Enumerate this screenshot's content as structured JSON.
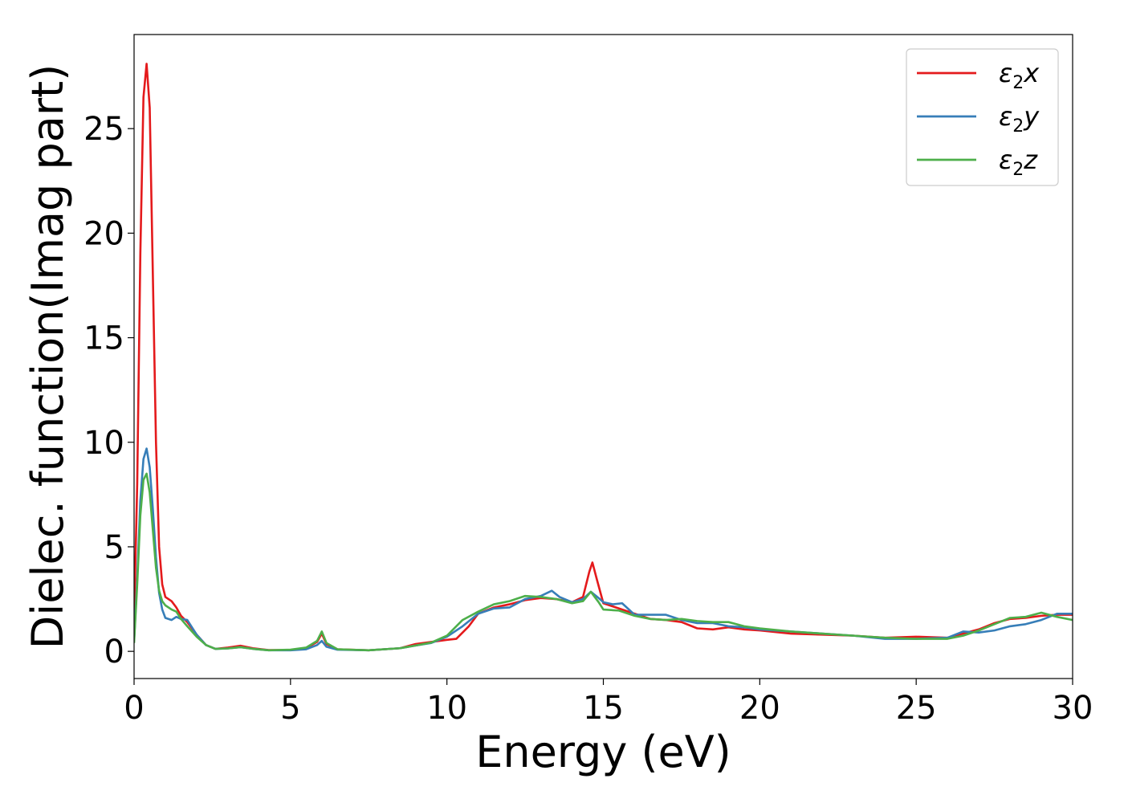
{
  "chart_data": {
    "type": "line",
    "title": "",
    "xlabel": "Energy (eV)",
    "ylabel": "Dielec. function(Imag part)",
    "xlim": [
      0,
      30
    ],
    "ylim": [
      -1.3,
      29.5
    ],
    "xticks": [
      0,
      5,
      10,
      15,
      20,
      25,
      30
    ],
    "yticks": [
      0,
      5,
      10,
      15,
      20,
      25
    ],
    "grid": false,
    "legend_position": "top-right",
    "series": [
      {
        "name": "ε₂x",
        "label_main": "ε",
        "label_sub": "2",
        "label_tail": "x",
        "color": "#e41a1c",
        "points": [
          [
            0,
            1.5
          ],
          [
            0.1,
            8
          ],
          [
            0.2,
            19
          ],
          [
            0.3,
            26.5
          ],
          [
            0.4,
            28.1
          ],
          [
            0.5,
            26
          ],
          [
            0.6,
            18
          ],
          [
            0.7,
            10
          ],
          [
            0.8,
            5
          ],
          [
            0.9,
            3.2
          ],
          [
            1.0,
            2.6
          ],
          [
            1.2,
            2.4
          ],
          [
            1.35,
            2.1
          ],
          [
            1.5,
            1.7
          ],
          [
            1.7,
            1.4
          ],
          [
            2.0,
            0.8
          ],
          [
            2.3,
            0.3
          ],
          [
            2.6,
            0.12
          ],
          [
            3.0,
            0.18
          ],
          [
            3.4,
            0.27
          ],
          [
            3.8,
            0.15
          ],
          [
            4.3,
            0.06
          ],
          [
            5.0,
            0.06
          ],
          [
            5.5,
            0.15
          ],
          [
            5.85,
            0.45
          ],
          [
            6.0,
            0.85
          ],
          [
            6.15,
            0.35
          ],
          [
            6.5,
            0.1
          ],
          [
            7.5,
            0.05
          ],
          [
            8.5,
            0.15
          ],
          [
            9.0,
            0.35
          ],
          [
            9.5,
            0.45
          ],
          [
            10.0,
            0.55
          ],
          [
            10.3,
            0.6
          ],
          [
            10.7,
            1.2
          ],
          [
            11.0,
            1.8
          ],
          [
            11.5,
            2.1
          ],
          [
            12.0,
            2.25
          ],
          [
            12.5,
            2.45
          ],
          [
            13.0,
            2.55
          ],
          [
            13.5,
            2.5
          ],
          [
            14.0,
            2.35
          ],
          [
            14.35,
            2.6
          ],
          [
            14.55,
            3.8
          ],
          [
            14.65,
            4.25
          ],
          [
            14.8,
            3.4
          ],
          [
            15.0,
            2.3
          ],
          [
            15.5,
            2.05
          ],
          [
            16.0,
            1.8
          ],
          [
            16.5,
            1.55
          ],
          [
            17.0,
            1.5
          ],
          [
            17.5,
            1.4
          ],
          [
            18.0,
            1.1
          ],
          [
            18.5,
            1.05
          ],
          [
            19.0,
            1.15
          ],
          [
            19.5,
            1.05
          ],
          [
            20.0,
            1.0
          ],
          [
            21.0,
            0.85
          ],
          [
            22.0,
            0.8
          ],
          [
            23.0,
            0.75
          ],
          [
            24.0,
            0.65
          ],
          [
            25.0,
            0.7
          ],
          [
            26.0,
            0.65
          ],
          [
            26.5,
            0.85
          ],
          [
            27.0,
            1.05
          ],
          [
            27.5,
            1.35
          ],
          [
            28.0,
            1.55
          ],
          [
            28.5,
            1.6
          ],
          [
            29.0,
            1.7
          ],
          [
            29.5,
            1.75
          ],
          [
            30.0,
            1.75
          ]
        ]
      },
      {
        "name": "ε₂y",
        "label_main": "ε",
        "label_sub": "2",
        "label_tail": "y",
        "color": "#377eb8",
        "points": [
          [
            0,
            0.5
          ],
          [
            0.1,
            3.5
          ],
          [
            0.2,
            7.2
          ],
          [
            0.3,
            9.2
          ],
          [
            0.4,
            9.7
          ],
          [
            0.5,
            8.8
          ],
          [
            0.6,
            6.8
          ],
          [
            0.7,
            4.5
          ],
          [
            0.8,
            2.8
          ],
          [
            0.9,
            2.0
          ],
          [
            1.0,
            1.6
          ],
          [
            1.2,
            1.5
          ],
          [
            1.35,
            1.65
          ],
          [
            1.5,
            1.55
          ],
          [
            1.7,
            1.5
          ],
          [
            2.0,
            0.8
          ],
          [
            2.3,
            0.3
          ],
          [
            2.6,
            0.12
          ],
          [
            3.0,
            0.14
          ],
          [
            3.4,
            0.2
          ],
          [
            3.8,
            0.12
          ],
          [
            4.3,
            0.05
          ],
          [
            5.0,
            0.05
          ],
          [
            5.5,
            0.1
          ],
          [
            5.85,
            0.3
          ],
          [
            6.0,
            0.5
          ],
          [
            6.15,
            0.22
          ],
          [
            6.5,
            0.08
          ],
          [
            7.5,
            0.05
          ],
          [
            8.5,
            0.15
          ],
          [
            9.0,
            0.28
          ],
          [
            9.5,
            0.4
          ],
          [
            10.0,
            0.7
          ],
          [
            10.5,
            1.2
          ],
          [
            11.0,
            1.8
          ],
          [
            11.5,
            2.05
          ],
          [
            12.0,
            2.1
          ],
          [
            12.5,
            2.5
          ],
          [
            13.0,
            2.65
          ],
          [
            13.35,
            2.9
          ],
          [
            13.6,
            2.6
          ],
          [
            14.0,
            2.35
          ],
          [
            14.35,
            2.5
          ],
          [
            14.6,
            2.85
          ],
          [
            14.85,
            2.55
          ],
          [
            15.0,
            2.35
          ],
          [
            15.3,
            2.25
          ],
          [
            15.6,
            2.3
          ],
          [
            16.0,
            1.75
          ],
          [
            16.5,
            1.75
          ],
          [
            17.0,
            1.75
          ],
          [
            17.5,
            1.5
          ],
          [
            18.0,
            1.35
          ],
          [
            18.5,
            1.35
          ],
          [
            19.0,
            1.2
          ],
          [
            19.5,
            1.15
          ],
          [
            20.0,
            1.05
          ],
          [
            21.0,
            0.95
          ],
          [
            22.0,
            0.85
          ],
          [
            23.0,
            0.75
          ],
          [
            24.0,
            0.6
          ],
          [
            25.0,
            0.6
          ],
          [
            26.0,
            0.65
          ],
          [
            26.5,
            0.95
          ],
          [
            27.0,
            0.9
          ],
          [
            27.5,
            1.0
          ],
          [
            28.0,
            1.2
          ],
          [
            28.5,
            1.3
          ],
          [
            29.0,
            1.5
          ],
          [
            29.5,
            1.8
          ],
          [
            30.0,
            1.8
          ]
        ]
      },
      {
        "name": "ε₂z",
        "label_main": "ε",
        "label_sub": "2",
        "label_tail": "z",
        "color": "#4daf4a",
        "points": [
          [
            0,
            0.4
          ],
          [
            0.1,
            3.2
          ],
          [
            0.2,
            6.5
          ],
          [
            0.3,
            8.2
          ],
          [
            0.4,
            8.5
          ],
          [
            0.5,
            7.6
          ],
          [
            0.6,
            5.8
          ],
          [
            0.7,
            4.0
          ],
          [
            0.8,
            2.9
          ],
          [
            0.9,
            2.4
          ],
          [
            1.0,
            2.2
          ],
          [
            1.2,
            2.0
          ],
          [
            1.35,
            1.9
          ],
          [
            1.5,
            1.55
          ],
          [
            1.7,
            1.2
          ],
          [
            2.0,
            0.7
          ],
          [
            2.3,
            0.3
          ],
          [
            2.6,
            0.12
          ],
          [
            3.0,
            0.14
          ],
          [
            3.4,
            0.2
          ],
          [
            3.8,
            0.12
          ],
          [
            4.3,
            0.05
          ],
          [
            5.0,
            0.08
          ],
          [
            5.5,
            0.18
          ],
          [
            5.85,
            0.5
          ],
          [
            6.0,
            0.95
          ],
          [
            6.15,
            0.4
          ],
          [
            6.5,
            0.1
          ],
          [
            7.5,
            0.05
          ],
          [
            8.5,
            0.15
          ],
          [
            9.0,
            0.28
          ],
          [
            9.5,
            0.42
          ],
          [
            10.0,
            0.75
          ],
          [
            10.5,
            1.5
          ],
          [
            11.0,
            1.9
          ],
          [
            11.5,
            2.25
          ],
          [
            12.0,
            2.4
          ],
          [
            12.5,
            2.65
          ],
          [
            13.0,
            2.6
          ],
          [
            13.5,
            2.5
          ],
          [
            14.0,
            2.3
          ],
          [
            14.35,
            2.4
          ],
          [
            14.6,
            2.85
          ],
          [
            14.85,
            2.35
          ],
          [
            15.0,
            2.0
          ],
          [
            15.5,
            1.95
          ],
          [
            16.0,
            1.7
          ],
          [
            16.5,
            1.55
          ],
          [
            17.0,
            1.5
          ],
          [
            17.5,
            1.55
          ],
          [
            18.0,
            1.45
          ],
          [
            18.5,
            1.4
          ],
          [
            19.0,
            1.4
          ],
          [
            19.5,
            1.2
          ],
          [
            20.0,
            1.1
          ],
          [
            21.0,
            0.95
          ],
          [
            22.0,
            0.85
          ],
          [
            23.0,
            0.75
          ],
          [
            24.0,
            0.65
          ],
          [
            25.0,
            0.6
          ],
          [
            26.0,
            0.6
          ],
          [
            26.5,
            0.75
          ],
          [
            27.0,
            1.0
          ],
          [
            27.5,
            1.3
          ],
          [
            28.0,
            1.6
          ],
          [
            28.5,
            1.65
          ],
          [
            29.0,
            1.85
          ],
          [
            29.5,
            1.65
          ],
          [
            30.0,
            1.5
          ]
        ]
      }
    ]
  }
}
